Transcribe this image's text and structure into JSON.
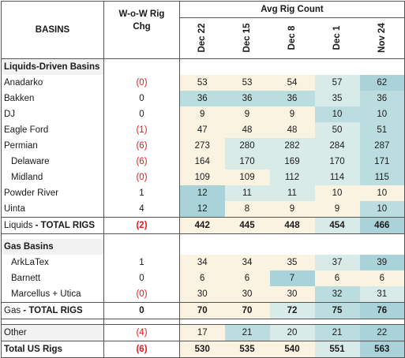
{
  "header": {
    "basins_label": "BASINS",
    "wow_label_line1": "W-o-W Rig",
    "wow_label_line2": "Chg",
    "avg_label": "Avg Rig Count",
    "dates": [
      "Dec 22",
      "Dec 15",
      "Dec 8",
      "Dec 1",
      "Nov 24"
    ]
  },
  "colors": {
    "negative_text": "#e21b1b",
    "cream": "#fbf3e1",
    "teal_light": "#d9ebe9",
    "teal_mid": "#bcdde0",
    "teal_dark": "#a9d3d9",
    "section_bg": "#f2f2f2"
  },
  "sections": [
    {
      "title": "Liquids-Driven Basins",
      "rows": [
        {
          "name": "Anadarko",
          "indent": false,
          "wow": "(0)",
          "neg": true,
          "values": [
            "53",
            "53",
            "54",
            "57",
            "62"
          ],
          "shades": [
            "c",
            "c",
            "c",
            "t1",
            "t3"
          ]
        },
        {
          "name": "Bakken",
          "indent": false,
          "wow": "0",
          "neg": false,
          "values": [
            "36",
            "36",
            "36",
            "35",
            "36"
          ],
          "shades": [
            "t2",
            "t2",
            "t2",
            "t1",
            "t2"
          ]
        },
        {
          "name": "DJ",
          "indent": false,
          "wow": "0",
          "neg": false,
          "values": [
            "9",
            "9",
            "9",
            "10",
            "10"
          ],
          "shades": [
            "c",
            "c",
            "c",
            "t2",
            "t2"
          ]
        },
        {
          "name": "Eagle Ford",
          "indent": false,
          "wow": "(1)",
          "neg": true,
          "values": [
            "47",
            "48",
            "48",
            "50",
            "51"
          ],
          "shades": [
            "c",
            "c",
            "c",
            "t1",
            "t2"
          ]
        },
        {
          "name": "Permian",
          "indent": false,
          "wow": "(6)",
          "neg": true,
          "values": [
            "273",
            "280",
            "282",
            "284",
            "287"
          ],
          "shades": [
            "c",
            "t1",
            "t1",
            "t1",
            "t2"
          ]
        },
        {
          "name": "Delaware",
          "indent": true,
          "wow": "(6)",
          "neg": true,
          "values": [
            "164",
            "170",
            "169",
            "170",
            "171"
          ],
          "shades": [
            "c",
            "t1",
            "t1",
            "t1",
            "t2"
          ]
        },
        {
          "name": "Midland",
          "indent": true,
          "wow": "(0)",
          "neg": true,
          "values": [
            "109",
            "109",
            "112",
            "114",
            "115"
          ],
          "shades": [
            "c",
            "c",
            "t1",
            "t1",
            "t2"
          ]
        },
        {
          "name": "Powder River",
          "indent": false,
          "wow": "1",
          "neg": false,
          "values": [
            "12",
            "11",
            "11",
            "10",
            "10"
          ],
          "shades": [
            "t3",
            "t1",
            "t1",
            "c",
            "c"
          ]
        },
        {
          "name": "Uinta",
          "indent": false,
          "wow": "4",
          "neg": false,
          "values": [
            "12",
            "8",
            "9",
            "9",
            "10"
          ],
          "shades": [
            "t3",
            "c",
            "c",
            "c",
            "t2"
          ]
        }
      ],
      "total": {
        "name_prefix": "Liquids",
        "name_suffix": " - TOTAL RIGS",
        "wow": "(2)",
        "neg": true,
        "values": [
          "442",
          "445",
          "448",
          "454",
          "466"
        ],
        "shades": [
          "c",
          "c",
          "c",
          "t1",
          "t3"
        ]
      }
    },
    {
      "title": "Gas Basins",
      "rows": [
        {
          "name": "ArkLaTex",
          "indent": true,
          "wow": "1",
          "neg": false,
          "values": [
            "34",
            "34",
            "35",
            "37",
            "39"
          ],
          "shades": [
            "c",
            "c",
            "c",
            "t1",
            "t3"
          ]
        },
        {
          "name": "Barnett",
          "indent": true,
          "wow": "0",
          "neg": false,
          "values": [
            "6",
            "6",
            "7",
            "6",
            "6"
          ],
          "shades": [
            "c",
            "c",
            "t3",
            "c",
            "c"
          ]
        },
        {
          "name": "Marcellus + Utica",
          "indent": true,
          "wow": "(0)",
          "neg": true,
          "values": [
            "30",
            "30",
            "30",
            "32",
            "31"
          ],
          "shades": [
            "c",
            "c",
            "c",
            "t2",
            "t1"
          ]
        }
      ],
      "total": {
        "name_prefix": "Gas",
        "name_suffix": " - TOTAL RIGS",
        "wow": "0",
        "neg": false,
        "values": [
          "70",
          "70",
          "72",
          "75",
          "76"
        ],
        "shades": [
          "c",
          "c",
          "t1",
          "t2",
          "t3"
        ]
      }
    }
  ],
  "other": {
    "name": "Other",
    "wow": "(4)",
    "neg": true,
    "values": [
      "17",
      "21",
      "20",
      "21",
      "22"
    ],
    "shades": [
      "c",
      "t2",
      "t1",
      "t2",
      "t3"
    ]
  },
  "grand_total": {
    "name": "Total US Rigs",
    "wow": "(6)",
    "neg": true,
    "values": [
      "530",
      "535",
      "540",
      "551",
      "563"
    ],
    "shades": [
      "c",
      "c",
      "c",
      "t1",
      "t3"
    ]
  }
}
